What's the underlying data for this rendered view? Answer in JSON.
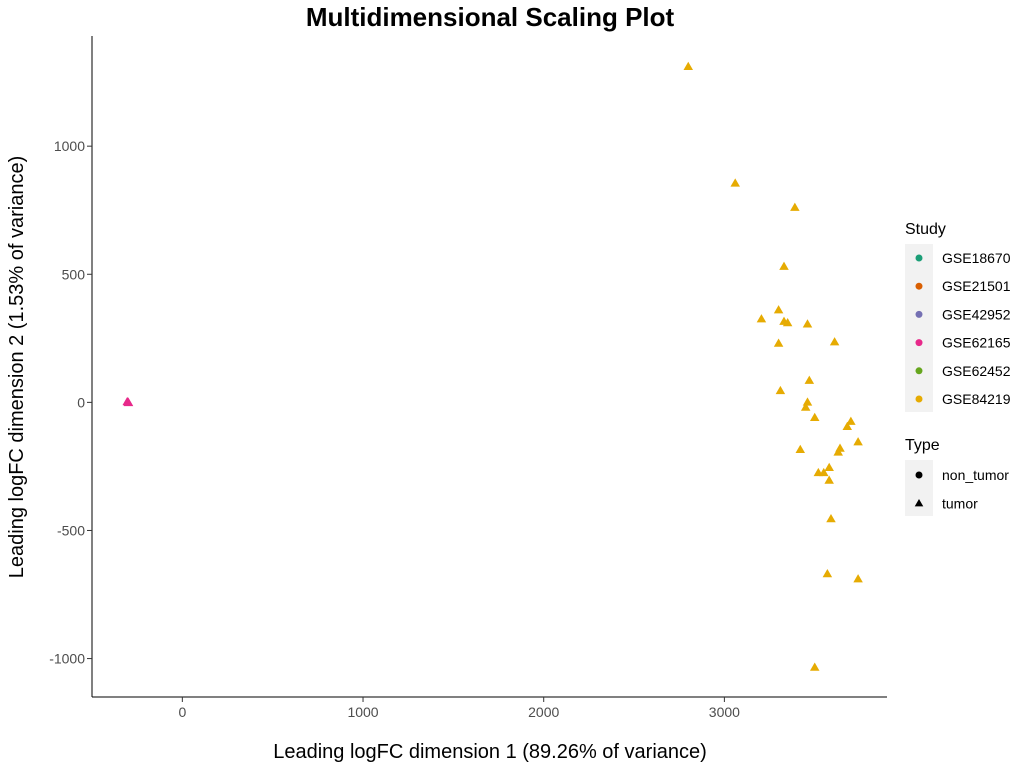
{
  "chart_data": {
    "type": "scatter",
    "title": "Multidimensional Scaling Plot",
    "xlabel": "Leading logFC dimension 1 (89.26% of variance)",
    "ylabel": "Leading logFC dimension 2 (1.53% of variance)",
    "xlim": [
      -500,
      3900
    ],
    "ylim": [
      -1150,
      1430
    ],
    "x_ticks": [
      0,
      1000,
      2000,
      3000
    ],
    "y_ticks": [
      -1000,
      -500,
      0,
      500,
      1000
    ],
    "grid": false,
    "legend_position": "right",
    "legends": [
      {
        "title": "Study",
        "entries": [
          {
            "label": "GSE18670",
            "color": "#1b9e77"
          },
          {
            "label": "GSE21501",
            "color": "#d95f02"
          },
          {
            "label": "GSE42952",
            "color": "#7570b3"
          },
          {
            "label": "GSE62165",
            "color": "#e7298a"
          },
          {
            "label": "GSE62452",
            "color": "#66a61e"
          },
          {
            "label": "GSE84219",
            "color": "#e6ab02"
          }
        ]
      },
      {
        "title": "Type",
        "entries": [
          {
            "label": "non_tumor",
            "shape": "circle"
          },
          {
            "label": "tumor",
            "shape": "triangle"
          }
        ]
      }
    ],
    "series": [
      {
        "study": "GSE62165",
        "type": "tumor",
        "color": "#e7298a",
        "points": [
          {
            "x": -300,
            "y": 0
          },
          {
            "x": -305,
            "y": 2
          },
          {
            "x": -298,
            "y": -2
          }
        ]
      },
      {
        "study": "GSE84219",
        "type": "tumor",
        "color": "#e6ab02",
        "points": [
          {
            "x": 2800,
            "y": 1310
          },
          {
            "x": 3060,
            "y": 855
          },
          {
            "x": 3390,
            "y": 760
          },
          {
            "x": 3330,
            "y": 530
          },
          {
            "x": 3300,
            "y": 360
          },
          {
            "x": 3205,
            "y": 325
          },
          {
            "x": 3330,
            "y": 315
          },
          {
            "x": 3350,
            "y": 310
          },
          {
            "x": 3460,
            "y": 305
          },
          {
            "x": 3300,
            "y": 230
          },
          {
            "x": 3610,
            "y": 235
          },
          {
            "x": 3470,
            "y": 85
          },
          {
            "x": 3310,
            "y": 45
          },
          {
            "x": 3460,
            "y": 0
          },
          {
            "x": 3450,
            "y": -20
          },
          {
            "x": 3500,
            "y": -60
          },
          {
            "x": 3700,
            "y": -75
          },
          {
            "x": 3680,
            "y": -95
          },
          {
            "x": 3740,
            "y": -155
          },
          {
            "x": 3420,
            "y": -185
          },
          {
            "x": 3640,
            "y": -180
          },
          {
            "x": 3630,
            "y": -195
          },
          {
            "x": 3580,
            "y": -255
          },
          {
            "x": 3520,
            "y": -275
          },
          {
            "x": 3550,
            "y": -275
          },
          {
            "x": 3580,
            "y": -305
          },
          {
            "x": 3590,
            "y": -455
          },
          {
            "x": 3570,
            "y": -670
          },
          {
            "x": 3740,
            "y": -690
          },
          {
            "x": 3500,
            "y": -1035
          }
        ]
      }
    ]
  }
}
